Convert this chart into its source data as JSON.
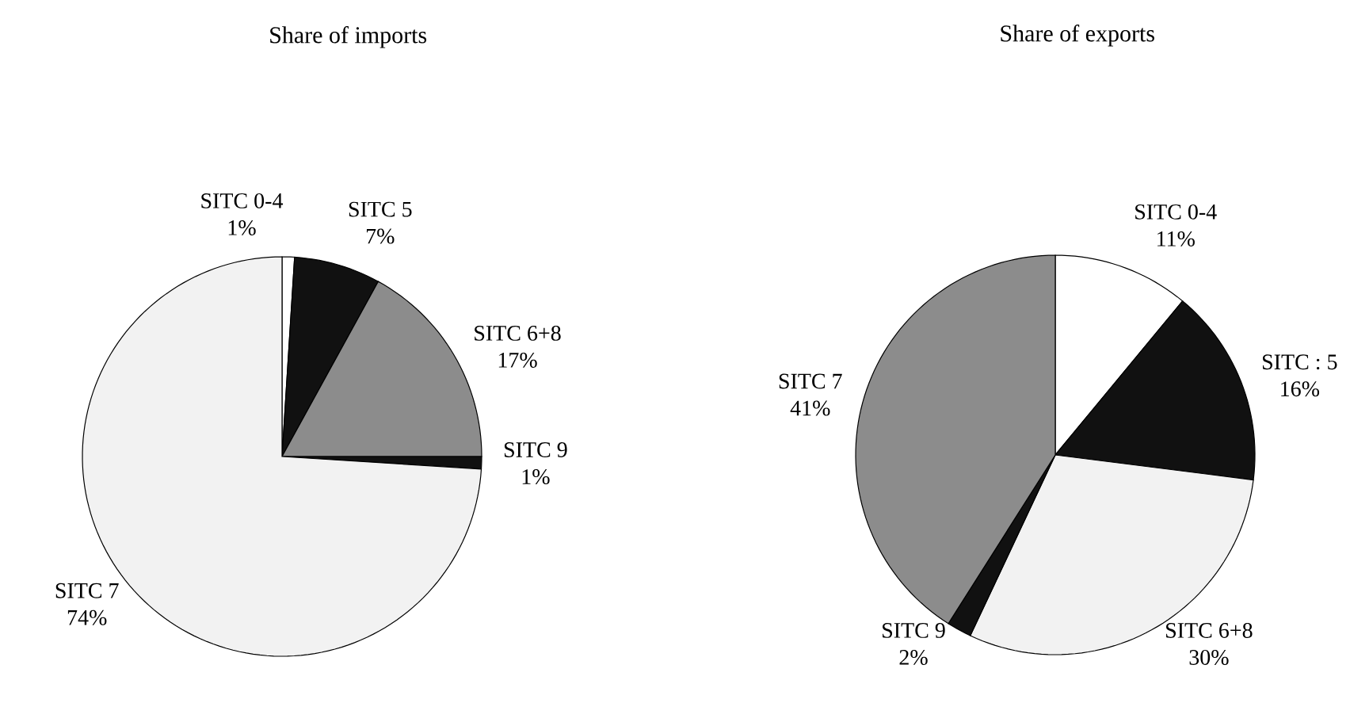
{
  "chart_data": [
    {
      "type": "pie",
      "title": "Share  of imports",
      "categories": [
        "SITC 0-4",
        "SITC 5",
        "SITC 6+8",
        "SITC 9",
        "SITC 7"
      ],
      "values": [
        1,
        7,
        17,
        1,
        74
      ],
      "value_labels": [
        "1%",
        "7%",
        "17%",
        "1%",
        "74%"
      ],
      "colors": [
        "#ffffff",
        "#111111",
        "#8c8c8c",
        "#111111",
        "#f2f2f2"
      ]
    },
    {
      "type": "pie",
      "title": "Share of exports",
      "categories": [
        "SITC  0-4",
        "SITC : 5",
        "SITC  6+8",
        "SITC  9",
        "SITC  7"
      ],
      "values": [
        11,
        16,
        30,
        2,
        41
      ],
      "value_labels": [
        "11%",
        "16%",
        "30%",
        "2%",
        "41%"
      ],
      "colors": [
        "#ffffff",
        "#111111",
        "#f2f2f2",
        "#111111",
        "#8c8c8c"
      ]
    }
  ]
}
